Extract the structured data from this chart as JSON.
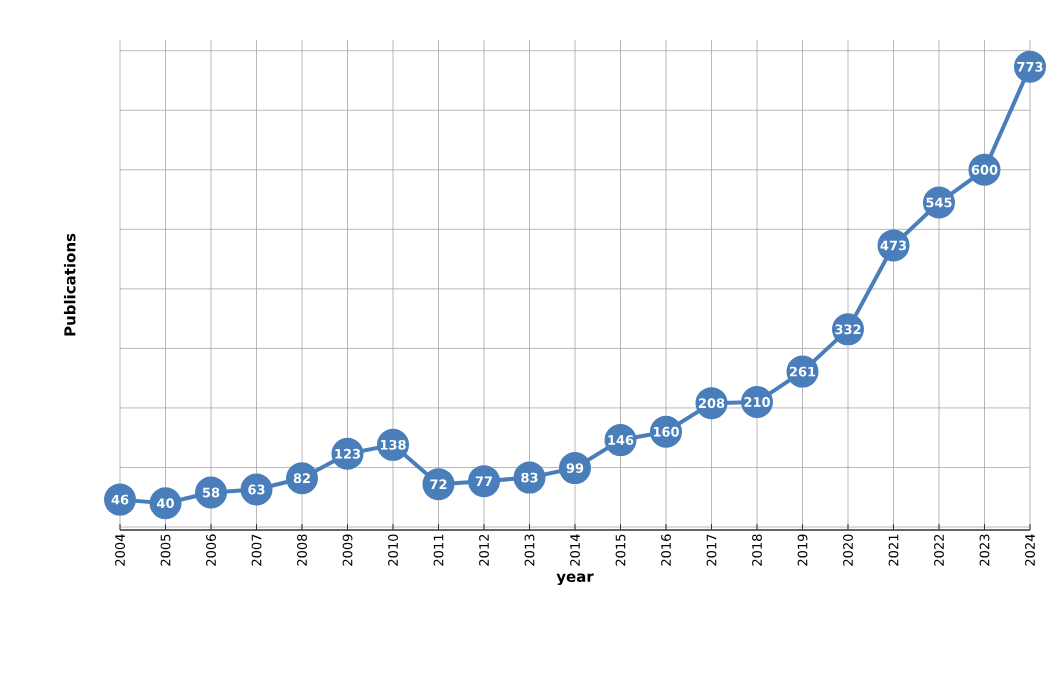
{
  "chart_data": {
    "type": "line",
    "xlabel": "year",
    "ylabel": "Publications",
    "categories": [
      "2004",
      "2005",
      "2006",
      "2007",
      "2008",
      "2009",
      "2010",
      "2011",
      "2012",
      "2013",
      "2014",
      "2015",
      "2016",
      "2017",
      "2018",
      "2019",
      "2020",
      "2021",
      "2022",
      "2023",
      "2024"
    ],
    "values": [
      46,
      40,
      58,
      63,
      82,
      123,
      138,
      72,
      77,
      83,
      99,
      146,
      160,
      208,
      210,
      261,
      332,
      473,
      545,
      600,
      773
    ],
    "color": "#4a7ebb",
    "tick_labels": "x",
    "grid": true,
    "marker": "circle",
    "line_style": "solid",
    "data_labels": true
  }
}
